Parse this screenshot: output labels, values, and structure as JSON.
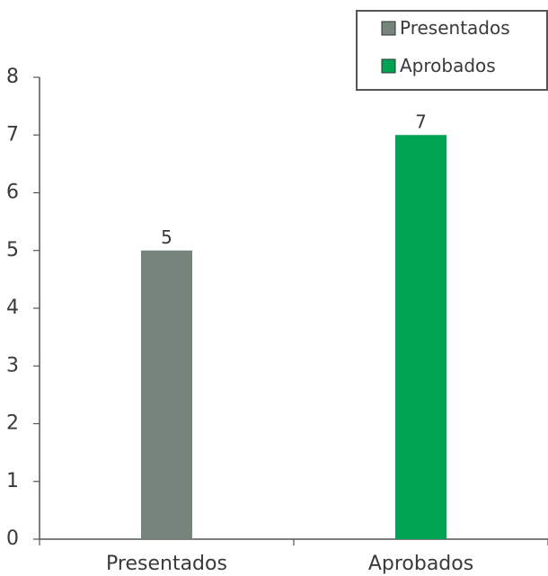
{
  "chart_data": {
    "type": "bar",
    "categories": [
      "Presentados",
      "Aprobados"
    ],
    "values": [
      5,
      7
    ],
    "colors": [
      "#76847b",
      "#00a352"
    ],
    "ylim": [
      0,
      8
    ],
    "yticks": [
      0,
      1,
      2,
      3,
      4,
      5,
      6,
      7,
      8
    ],
    "grid": false,
    "data_labels": [
      "5",
      "7"
    ],
    "legend": {
      "position": "top-right",
      "entries": [
        {
          "label": "Presentados",
          "color": "#76847b"
        },
        {
          "label": "Aprobados",
          "color": "#00a352"
        }
      ]
    }
  }
}
